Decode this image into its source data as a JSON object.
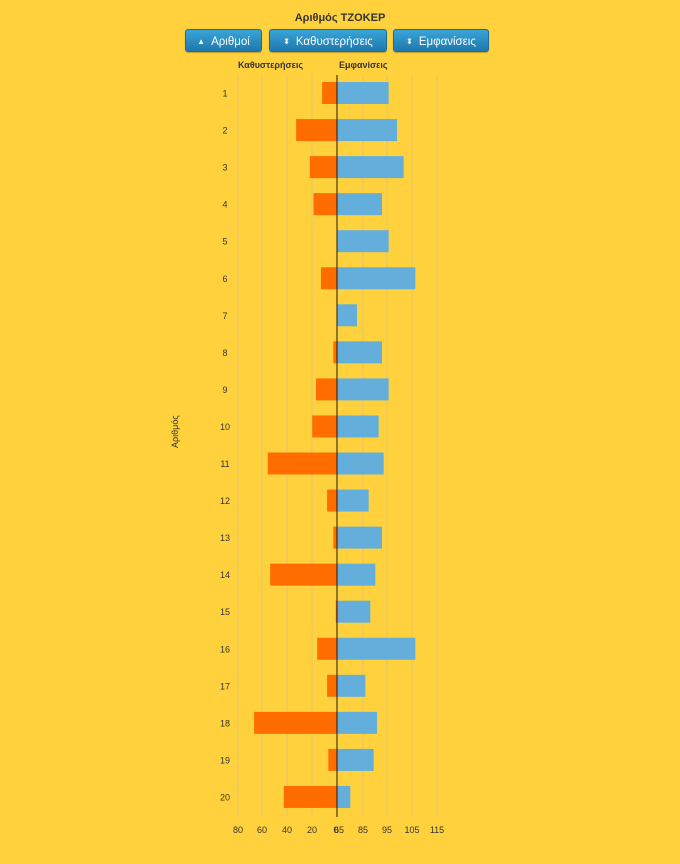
{
  "header": {
    "title": "Αριθμός ΤΖΟΚΕΡ"
  },
  "buttons": [
    {
      "name": "numbers-sort-button",
      "label": "Αριθμοί",
      "icon": "triangle-up-icon"
    },
    {
      "name": "delays-sort-button",
      "label": "Καθυστερήσεις",
      "icon": "sort-arrows-icon"
    },
    {
      "name": "appearances-sort-button",
      "label": "Εμφανίσεις",
      "icon": "sort-arrows-icon"
    }
  ],
  "chart_data": {
    "type": "bar",
    "layout": "diverging-horizontal",
    "categories": [
      "1",
      "2",
      "3",
      "4",
      "5",
      "6",
      "7",
      "8",
      "9",
      "10",
      "11",
      "12",
      "13",
      "14",
      "15",
      "16",
      "17",
      "18",
      "19",
      "20"
    ],
    "series": [
      {
        "name": "Καθυστερήσεις",
        "color": "#ff6d00",
        "values": [
          12,
          33,
          22,
          19,
          0,
          13,
          0,
          3,
          17,
          20,
          56,
          8,
          3,
          54,
          1,
          16,
          8,
          67,
          7,
          43
        ]
      },
      {
        "name": "Εμφανίσεις",
        "color": "#63aedb",
        "values": [
          96,
          101,
          105,
          92,
          96,
          112,
          77,
          92,
          96,
          90,
          93,
          84,
          92,
          88,
          85,
          112,
          82,
          89,
          87,
          73
        ]
      }
    ],
    "left_axis": {
      "label": "Καθυστερήσεις",
      "ticks": [
        "80",
        "60",
        "40",
        "20",
        "0"
      ],
      "range": [
        80,
        0
      ]
    },
    "right_axis": {
      "label": "Εμφανίσεις",
      "ticks": [
        "65",
        "85",
        "95",
        "105",
        "115"
      ],
      "range": [
        65,
        125
      ]
    },
    "ylabel": "Αριθμός",
    "grid": true
  }
}
